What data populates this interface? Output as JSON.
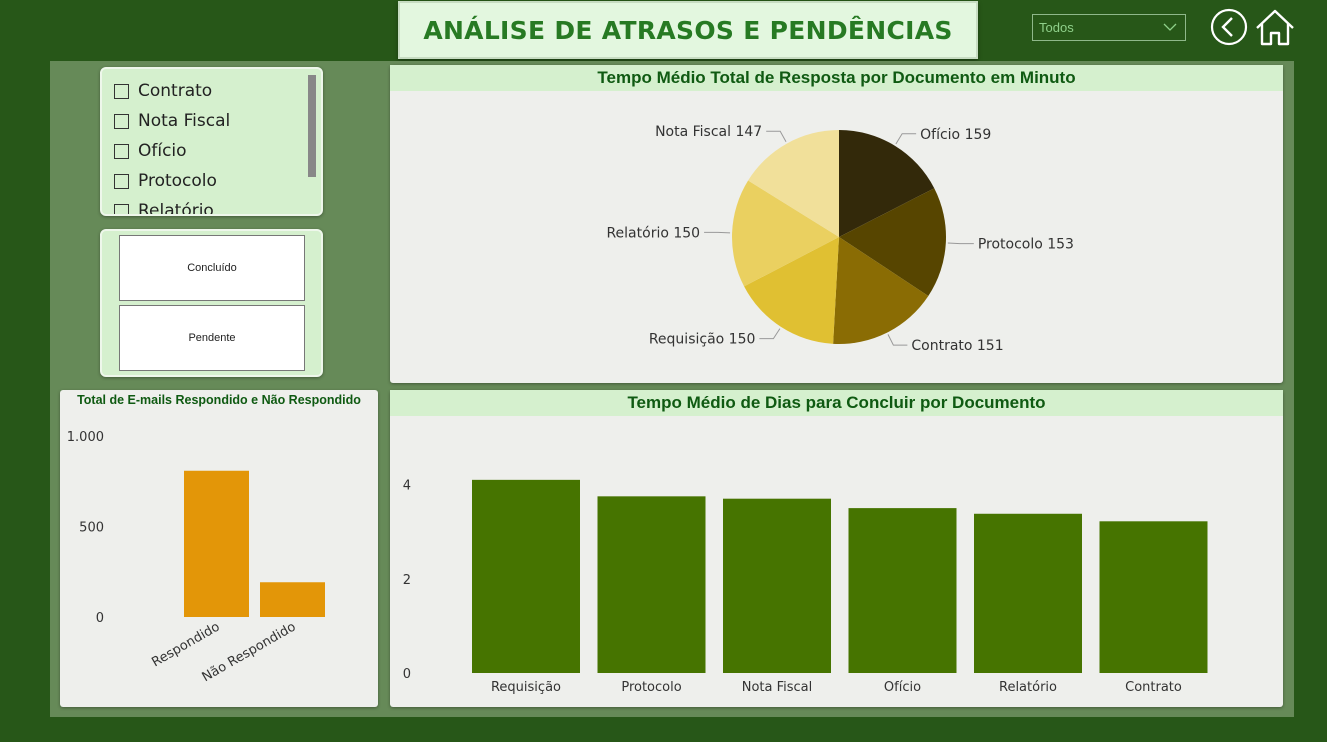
{
  "header": {
    "title": "ANÁLISE DE ATRASOS E PENDÊNCIAS"
  },
  "filter": {
    "selected": "Todos"
  },
  "nav": {
    "back_icon": "back-arrow-icon",
    "home_icon": "home-icon"
  },
  "doc_slicer": {
    "items": [
      "Contrato",
      "Nota Fiscal",
      "Ofício",
      "Protocolo",
      "Relatório"
    ]
  },
  "status_slicer": {
    "tiles": [
      "Concluído",
      "Pendente"
    ]
  },
  "pie_chart": {
    "title": "Tempo Médio Total de Resposta por Documento em Minuto"
  },
  "bar_chart": {
    "title": "Tempo Médio de Dias para Concluir por Documento"
  },
  "email_chart": {
    "title": "Total de E-mails Respondido e Não Respondido"
  },
  "colors": {
    "background": "#275718",
    "bar_green": "#467400",
    "bar_orange": "#e39608",
    "title_green": "#277a23"
  },
  "chart_data": [
    {
      "type": "pie",
      "title": "Tempo Médio Total de Resposta por Documento em Minuto",
      "slices": [
        {
          "label": "Ofício",
          "value": 159,
          "color": "#33290a"
        },
        {
          "label": "Protocolo",
          "value": 153,
          "color": "#574500"
        },
        {
          "label": "Contrato",
          "value": 151,
          "color": "#8a6c04"
        },
        {
          "label": "Requisição",
          "value": 150,
          "color": "#e0c032"
        },
        {
          "label": "Relatório",
          "value": 150,
          "color": "#ead060"
        },
        {
          "label": "Nota Fiscal",
          "value": 147,
          "color": "#f1e09a"
        }
      ]
    },
    {
      "type": "bar",
      "title": "Tempo Médio de Dias para Concluir por Documento",
      "categories": [
        "Requisição",
        "Protocolo",
        "Nota Fiscal",
        "Ofício",
        "Relatório",
        "Contrato"
      ],
      "values": [
        4.1,
        3.75,
        3.7,
        3.5,
        3.38,
        3.22
      ],
      "ylim": [
        0,
        4.5
      ],
      "yticks": [
        0,
        2,
        4
      ],
      "ytick_labels": [
        "0",
        "2",
        "4"
      ],
      "color": "#467400"
    },
    {
      "type": "bar",
      "title": "Total de E-mails Respondido e Não Respondido",
      "categories": [
        "Respondido",
        "Não Respondido"
      ],
      "values": [
        808,
        192
      ],
      "ylim": [
        0,
        1000
      ],
      "yticks": [
        0,
        500,
        1000
      ],
      "ytick_labels": [
        "0",
        "500",
        "1.000"
      ],
      "color": "#e39608"
    }
  ]
}
